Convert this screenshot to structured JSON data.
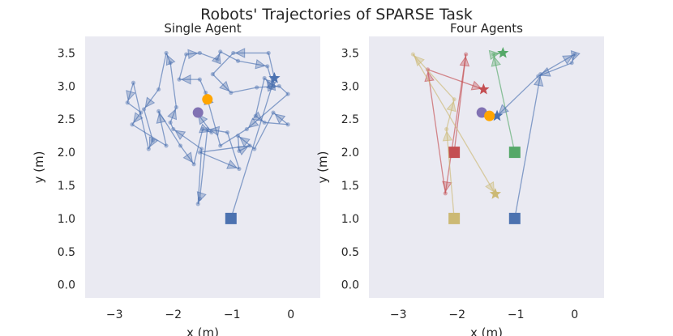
{
  "suptitle": "Robots' Trajectories of SPARSE Task",
  "colors": {
    "panel_bg": "#eaeaf2",
    "blue": "#4c72b0",
    "red": "#c44e52",
    "green": "#55a868",
    "tan": "#ccb974",
    "purple": "#8172b3",
    "orange": "#ffa500"
  },
  "chart_data": [
    {
      "type": "scatter",
      "title": "Single Agent",
      "xlabel": "x (m)",
      "ylabel": "y (m)",
      "xlim": [
        -3.5,
        0.5
      ],
      "ylim": [
        -0.2,
        3.75
      ],
      "xticks": [
        -3,
        -2,
        -1,
        0
      ],
      "xtick_labels": [
        "−3",
        "−2",
        "−1",
        "0"
      ],
      "yticks": [
        0.0,
        0.5,
        1.0,
        1.5,
        2.0,
        2.5,
        3.0,
        3.5
      ],
      "ytick_labels": [
        "0.0",
        "0.5",
        "1.0",
        "1.5",
        "2.0",
        "2.5",
        "3.0",
        "3.5"
      ],
      "grid": false,
      "series": [
        {
          "color": "blue",
          "start": [
            -1.02,
            1.0
          ],
          "goal": [
            -0.28,
            3.12
          ],
          "path": [
            [
              -1.02,
              1.0
            ],
            [
              -0.28,
              3.12
            ],
            [
              -0.38,
              3.5
            ],
            [
              -0.98,
              3.5
            ],
            [
              -1.33,
              3.18
            ],
            [
              -1.02,
              2.9
            ],
            [
              -0.58,
              2.98
            ],
            [
              -0.2,
              3.0
            ],
            [
              -0.05,
              2.88
            ],
            [
              -0.75,
              2.35
            ],
            [
              -1.2,
              2.1
            ],
            [
              -1.45,
              2.9
            ],
            [
              -1.55,
              3.1
            ],
            [
              -1.9,
              3.1
            ],
            [
              -1.78,
              3.48
            ],
            [
              -1.55,
              3.5
            ],
            [
              -1.25,
              3.4
            ],
            [
              -1.2,
              3.52
            ],
            [
              -0.9,
              3.38
            ],
            [
              -0.4,
              3.3
            ],
            [
              -0.3,
              3.0
            ],
            [
              -0.45,
              3.12
            ],
            [
              -0.6,
              2.55
            ],
            [
              -0.45,
              2.45
            ],
            [
              -0.05,
              2.42
            ],
            [
              -0.3,
              2.6
            ],
            [
              -0.62,
              2.05
            ],
            [
              -0.9,
              2.25
            ],
            [
              -0.88,
              2.02
            ],
            [
              -0.7,
              2.1
            ],
            [
              -1.55,
              2.0
            ],
            [
              -0.88,
              1.75
            ],
            [
              -1.08,
              2.3
            ],
            [
              -1.42,
              2.35
            ],
            [
              -1.55,
              1.3
            ],
            [
              -1.58,
              1.22
            ],
            [
              -1.52,
              2.05
            ],
            [
              -2.0,
              2.35
            ],
            [
              -2.05,
              2.45
            ],
            [
              -1.95,
              2.68
            ],
            [
              -2.05,
              3.35
            ],
            [
              -2.12,
              3.5
            ],
            [
              -2.25,
              2.95
            ],
            [
              -2.5,
              2.65
            ],
            [
              -2.35,
              2.18
            ],
            [
              -2.42,
              2.05
            ],
            [
              -2.68,
              3.05
            ],
            [
              -2.78,
              2.75
            ],
            [
              -2.55,
              2.6
            ],
            [
              -2.7,
              2.42
            ],
            [
              -2.12,
              2.1
            ],
            [
              -2.25,
              2.62
            ],
            [
              -1.88,
              2.1
            ],
            [
              -1.65,
              1.82
            ],
            [
              -1.5,
              2.35
            ],
            [
              -1.35,
              2.3
            ],
            [
              -1.6,
              2.6
            ]
          ],
          "arrow_every": 2
        }
      ],
      "robot": [
        -1.58,
        2.6
      ],
      "target": [
        -1.42,
        2.8
      ]
    },
    {
      "type": "scatter",
      "title": "Four Agents",
      "xlabel": "x (m)",
      "ylabel": "y (m)",
      "xlim": [
        -3.5,
        0.5
      ],
      "ylim": [
        -0.2,
        3.75
      ],
      "xticks": [
        -3,
        -2,
        -1,
        0
      ],
      "xtick_labels": [
        "−3",
        "−2",
        "−1",
        "0"
      ],
      "yticks": [
        0.0,
        0.5,
        1.0,
        1.5,
        2.0,
        2.5,
        3.0,
        3.5
      ],
      "ytick_labels": [
        "0.0",
        "0.5",
        "1.0",
        "1.5",
        "2.0",
        "2.5",
        "3.0",
        "3.5"
      ],
      "grid": false,
      "series": [
        {
          "color": "red",
          "start": [
            -2.05,
            2.0
          ],
          "goal": [
            -1.55,
            2.95
          ],
          "path": [
            [
              -2.05,
              2.0
            ],
            [
              -1.85,
              3.48
            ],
            [
              -2.2,
              1.38
            ],
            [
              -2.5,
              3.25
            ],
            [
              -1.55,
              2.95
            ]
          ],
          "arrow_every": 1
        },
        {
          "color": "green",
          "start": [
            -1.02,
            2.0
          ],
          "goal": [
            -1.22,
            3.5
          ],
          "path": [
            [
              -1.02,
              2.0
            ],
            [
              -1.38,
              3.48
            ],
            [
              -1.25,
              3.5
            ],
            [
              -1.22,
              3.5
            ]
          ],
          "arrow_every": 1
        },
        {
          "color": "tan",
          "start": [
            -2.05,
            1.0
          ],
          "goal": [
            -1.35,
            1.37
          ],
          "path": [
            [
              -2.05,
              1.0
            ],
            [
              -2.18,
              2.35
            ],
            [
              -2.05,
              2.8
            ],
            [
              -2.75,
              3.48
            ],
            [
              -1.35,
              1.37
            ]
          ],
          "arrow_every": 1
        },
        {
          "color": "blue",
          "start": [
            -1.02,
            1.0
          ],
          "goal": [
            -1.32,
            2.55
          ],
          "path": [
            [
              -1.02,
              1.0
            ],
            [
              -0.58,
              3.18
            ],
            [
              0.0,
              3.48
            ],
            [
              -0.05,
              3.35
            ],
            [
              -0.62,
              3.15
            ],
            [
              -1.32,
              2.55
            ]
          ],
          "arrow_every": 1
        }
      ],
      "robot": [
        -1.58,
        2.6
      ],
      "target": [
        -1.45,
        2.55
      ]
    }
  ]
}
